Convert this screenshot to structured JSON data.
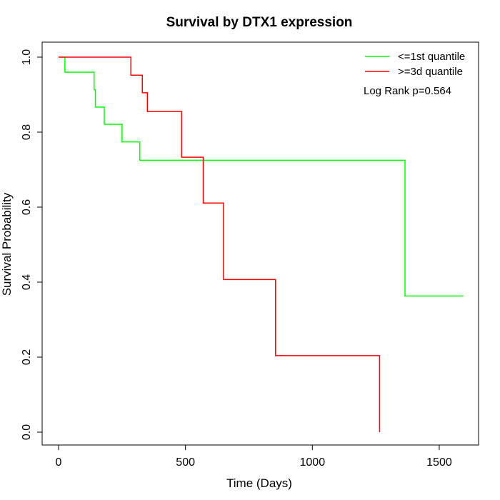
{
  "chart_data": {
    "type": "line",
    "subtype": "kaplan-meier-step",
    "title": "Survival by DTX1 expression",
    "xlabel": "Time (Days)",
    "ylabel": "Survival Probability",
    "xlim": [
      0,
      1600
    ],
    "ylim": [
      0,
      1.0
    ],
    "x_ticks": [
      0,
      500,
      1000,
      1500
    ],
    "y_ticks": [
      0.0,
      0.2,
      0.4,
      0.6,
      0.8,
      1.0
    ],
    "x_tick_labels": [
      "0",
      "500",
      "1000",
      "1500"
    ],
    "y_tick_labels": [
      "0.0",
      "0.2",
      "0.4",
      "0.6",
      "0.8",
      "1.0"
    ],
    "grid": false,
    "legend_position": "top-right",
    "annotation": "Log Rank p=0.564",
    "series": [
      {
        "name": "<=1st quantile",
        "color": "#00ff00",
        "x": [
          0,
          25,
          140,
          145,
          180,
          250,
          320,
          1365,
          1595
        ],
        "y": [
          1.0,
          0.96,
          0.913,
          0.867,
          0.821,
          0.774,
          0.725,
          0.363,
          0.363
        ]
      },
      {
        "name": ">=3d quantile",
        "color": "#ff0000",
        "x": [
          0,
          285,
          330,
          350,
          485,
          570,
          650,
          855,
          1265
        ],
        "y": [
          1.0,
          0.952,
          0.905,
          0.855,
          0.733,
          0.611,
          0.407,
          0.204,
          0.0
        ]
      }
    ]
  }
}
